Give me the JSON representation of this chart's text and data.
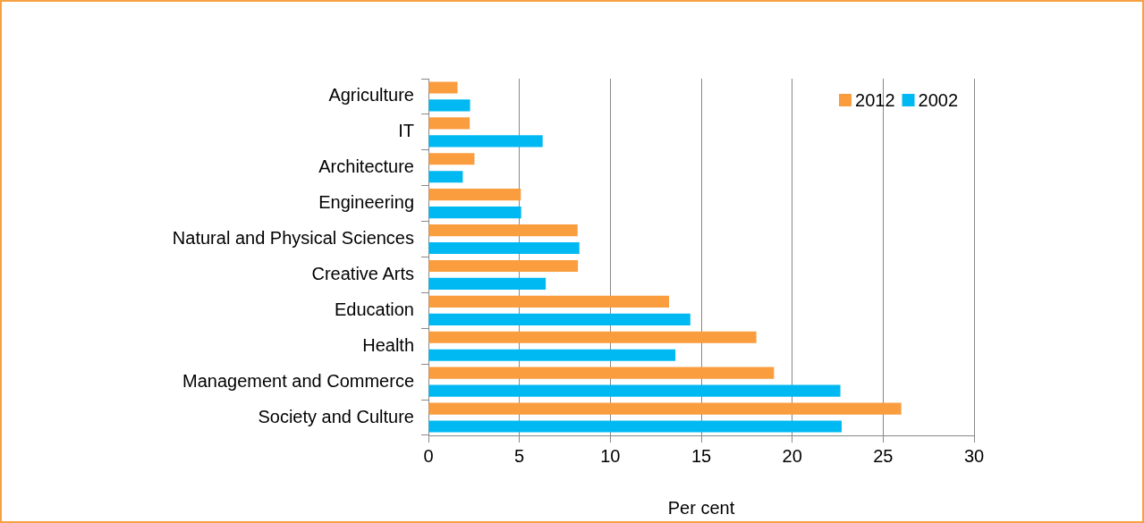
{
  "chart_data": {
    "type": "bar",
    "orientation": "horizontal",
    "xlabel": "Per cent",
    "categories": [
      "Agriculture",
      "IT",
      "Architecture",
      "Engineering",
      "Natural and Physical Sciences",
      "Creative Arts",
      "Education",
      "Health",
      "Management and Commerce",
      "Society and Culture"
    ],
    "series": [
      {
        "name": "2012",
        "color": "#f99d3e",
        "values": [
          1.6,
          2.27,
          2.53,
          5.08,
          8.2,
          8.22,
          13.23,
          18.03,
          19.0,
          26.0
        ]
      },
      {
        "name": "2002",
        "color": "#00b9f2",
        "values": [
          2.29,
          6.28,
          1.89,
          5.1,
          8.3,
          6.45,
          14.4,
          13.58,
          22.65,
          22.72
        ]
      }
    ],
    "xlim": [
      0,
      30
    ],
    "xticks": [
      0,
      5,
      10,
      15,
      20,
      25,
      30
    ],
    "grid": "x",
    "legend": "top right"
  }
}
